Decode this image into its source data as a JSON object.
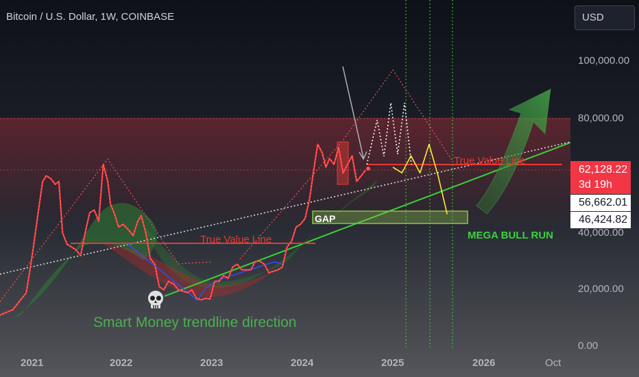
{
  "header": {
    "symbol_title": "Bitcoin / U.S. Dollar, 1W, COINBASE",
    "currency_button": "USD"
  },
  "price_tags": {
    "last_price": "62,128.22",
    "countdown": "3d 19h",
    "tag2": "56,662.01",
    "tag3": "46,424.82"
  },
  "annotations": {
    "true_value_1": "True Value Line",
    "true_value_2": "True Value Line",
    "gap": "GAP",
    "mega_bull": "MEGA BULL RUN",
    "smart_money": "Smart Money trendline direction",
    "skull_icon": "skull-icon"
  },
  "colors": {
    "price": "#ff3b3b",
    "white_path": "#ffffff",
    "forecast": "#ffeb3b",
    "trend": "#39d439",
    "blue": "#2d4dff",
    "true_value": "#e53935",
    "gap_fill": "#8bc34a"
  },
  "chart_data": {
    "type": "line",
    "title": "Bitcoin / U.S. Dollar, 1W, COINBASE",
    "xlabel": "",
    "ylabel": "",
    "x_ticks": [
      "2021",
      "2022",
      "2023",
      "2024",
      "2025",
      "2026",
      "Oct"
    ],
    "y_ticks": [
      "0.00",
      "20,000.00",
      "40,000.00",
      "80,000.00",
      "100,000.00"
    ],
    "ylim": [
      0,
      110000
    ],
    "log_scale": false,
    "grid": false,
    "series": [
      {
        "name": "",
        "x": [
          2020.65,
          2020.8,
          2020.95,
          2021.02,
          2021.08,
          2021.13,
          2021.17,
          2021.22,
          2021.27,
          2021.31,
          2021.35,
          2021.4,
          2021.45,
          2021.5,
          2021.55,
          2021.6,
          2021.65,
          2021.7,
          2021.75,
          2021.8,
          2021.85,
          2021.88,
          2021.92,
          2021.97,
          2022.02,
          2022.08,
          2022.13,
          2022.18,
          2022.22,
          2022.27,
          2022.32,
          2022.37,
          2022.42,
          2022.47,
          2022.52,
          2022.58,
          2022.63,
          2022.68,
          2022.73,
          2022.78,
          2022.83,
          2022.88,
          2022.93,
          2022.98,
          2023.03,
          2023.08,
          2023.13,
          2023.18,
          2023.23,
          2023.28,
          2023.33,
          2023.38,
          2023.43,
          2023.48,
          2023.53,
          2023.58,
          2023.63,
          2023.68,
          2023.73,
          2023.78,
          2023.83,
          2023.88,
          2023.93,
          2023.98,
          2024.03,
          2024.08,
          2024.13,
          2024.17,
          2024.22,
          2024.26,
          2024.3,
          2024.35,
          2024.4,
          2024.45,
          2024.5,
          2024.55,
          2024.6,
          2024.65,
          2024.7
        ],
        "values": [
          11000,
          13000,
          19000,
          33000,
          47000,
          58000,
          60000,
          59000,
          57000,
          58000,
          40000,
          36000,
          35000,
          34000,
          32000,
          40000,
          47000,
          48000,
          44000,
          64000,
          58000,
          50000,
          47000,
          42000,
          43000,
          41000,
          39000,
          44000,
          46000,
          40000,
          31000,
          29000,
          21000,
          20000,
          23000,
          22000,
          20000,
          19500,
          19000,
          20000,
          17000,
          16500,
          17000,
          16800,
          23000,
          23000,
          25000,
          24000,
          28000,
          29000,
          27000,
          27000,
          27000,
          30000,
          30000,
          29000,
          26000,
          26500,
          27000,
          28000,
          35000,
          37000,
          42000,
          43000,
          45000,
          52000,
          63000,
          71000,
          68000,
          63000,
          66000,
          64000,
          70000,
          61000,
          64000,
          67000,
          58000,
          60000,
          62000
        ]
      },
      {
        "name": "",
        "x": [
          2025.0,
          2025.1,
          2025.2,
          2025.3,
          2025.4,
          2025.5,
          2025.6
        ],
        "values": [
          63000,
          61000,
          67000,
          61000,
          71000,
          60000,
          46500
        ]
      }
    ],
    "shapes": [
      "True Value Line (2021 cycle)",
      "True Value Line (2024)",
      "GAP zone",
      "MEGA BULL RUN arrow"
    ]
  }
}
